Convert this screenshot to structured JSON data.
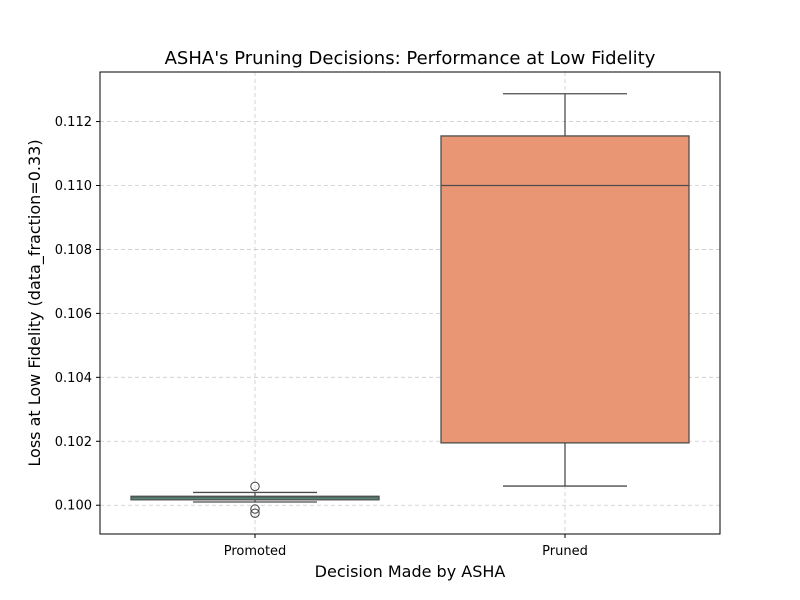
{
  "chart_data": {
    "type": "box",
    "title": "ASHA's Pruning Decisions: Performance at Low Fidelity",
    "xlabel": "Decision Made by ASHA",
    "ylabel": "Loss at Low Fidelity (data_fraction=0.33)",
    "categories": [
      "Promoted",
      "Pruned"
    ],
    "ylim": [
      0.0991,
      0.11355
    ],
    "yticks": [
      0.1,
      0.102,
      0.104,
      0.106,
      0.108,
      0.11,
      0.112
    ],
    "ytick_labels": [
      "0.100",
      "0.102",
      "0.104",
      "0.106",
      "0.108",
      "0.110",
      "0.112"
    ],
    "grid": true,
    "boxes": [
      {
        "category": "Promoted",
        "whisker_low": 0.1001,
        "q1": 0.10017,
        "median": 0.10023,
        "q3": 0.10028,
        "whisker_high": 0.1004,
        "outliers": [
          0.10059,
          0.09988,
          0.09975
        ],
        "color": "#66c2a5"
      },
      {
        "category": "Pruned",
        "whisker_low": 0.1006,
        "q1": 0.10195,
        "median": 0.11,
        "q3": 0.11155,
        "whisker_high": 0.11287,
        "outliers": [],
        "color": "#e99675"
      }
    ]
  },
  "colors": {
    "edge": "#4d4d4d",
    "grid": "#cccccc",
    "axes": "#000000"
  }
}
